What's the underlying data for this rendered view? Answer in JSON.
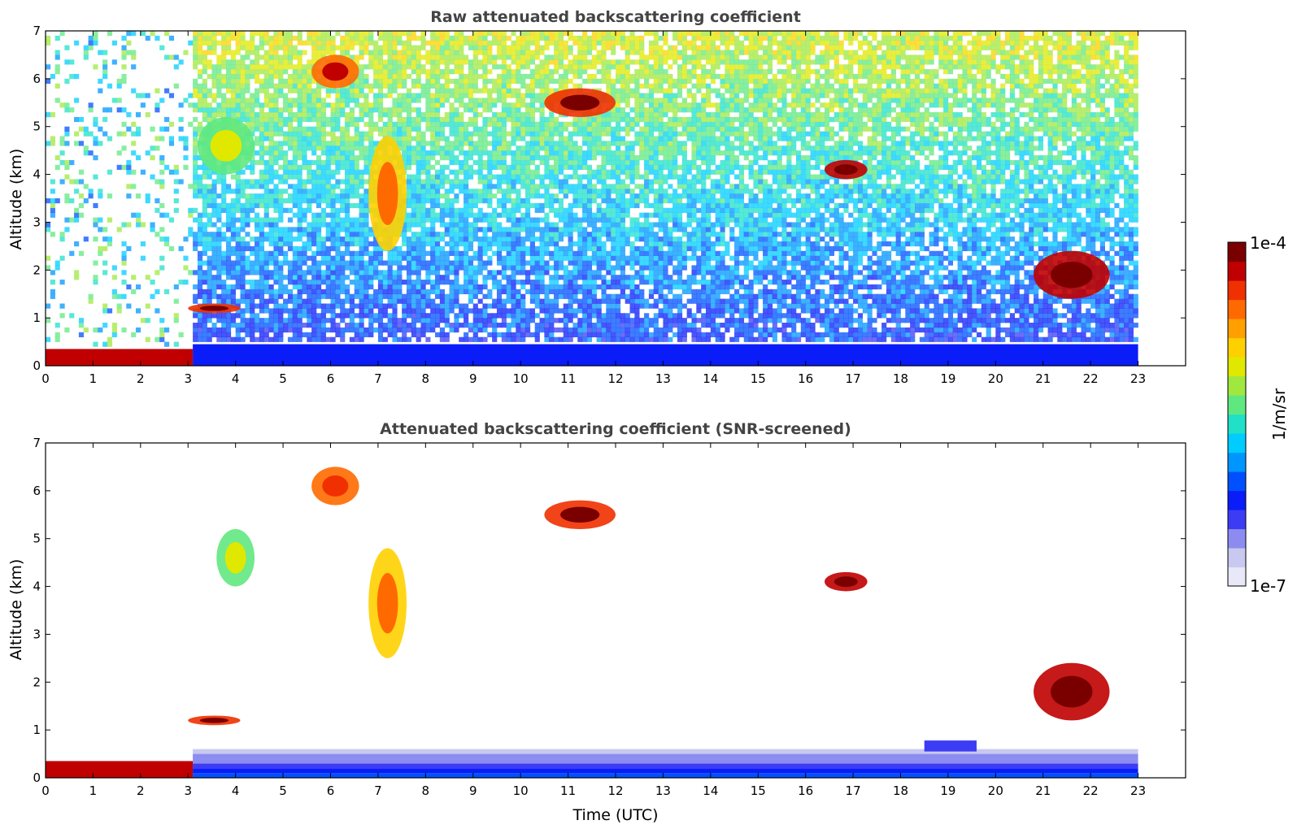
{
  "figure": {
    "colorbar": {
      "max_label": "1e-4",
      "min_label": "1e-7",
      "unit_label": "1/m/sr",
      "scale": "log",
      "colors": [
        "#e8e8f8",
        "#c8c8f0",
        "#8c8cf0",
        "#3c3cf4",
        "#0a1cf8",
        "#0050ff",
        "#0096ff",
        "#00ccff",
        "#20e0c8",
        "#60e880",
        "#a0e840",
        "#e0e800",
        "#ffd000",
        "#ffa000",
        "#ff6a00",
        "#f03000",
        "#c00000",
        "#7a0000"
      ]
    }
  },
  "chart_data": [
    {
      "type": "heatmap",
      "title": "Raw attenuated backscattering coefficient",
      "xlabel": "",
      "ylabel": "Altitude (km)",
      "xlim": [
        0,
        24
      ],
      "ylim": [
        0,
        7
      ],
      "x_ticks": [
        "0",
        "1",
        "2",
        "3",
        "4",
        "5",
        "6",
        "7",
        "8",
        "9",
        "10",
        "11",
        "12",
        "13",
        "14",
        "15",
        "16",
        "17",
        "18",
        "19",
        "20",
        "21",
        "22",
        "23"
      ],
      "y_ticks": [
        "0",
        "1",
        "2",
        "3",
        "4",
        "5",
        "6",
        "7"
      ],
      "data_extent_hours": [
        0,
        23
      ],
      "features": [
        {
          "name": "boundary-layer",
          "t": [
            3.1,
            23.0
          ],
          "alt": [
            0.0,
            0.45
          ],
          "level": 0.25
        },
        {
          "name": "morning-surface-layer",
          "t": [
            0.0,
            3.1
          ],
          "alt": [
            0.0,
            0.35
          ],
          "level": 0.92
        },
        {
          "name": "cloud-1",
          "t": [
            3.0,
            4.1
          ],
          "alt": [
            1.1,
            1.3
          ],
          "level": 0.88
        },
        {
          "name": "cloud-2",
          "t": [
            5.6,
            6.6
          ],
          "alt": [
            5.8,
            6.5
          ],
          "level": 0.85
        },
        {
          "name": "cloud-3",
          "t": [
            6.8,
            7.6
          ],
          "alt": [
            2.4,
            4.8
          ],
          "level": 0.72
        },
        {
          "name": "cloud-4",
          "t": [
            10.5,
            12.0
          ],
          "alt": [
            5.2,
            5.8
          ],
          "level": 0.9
        },
        {
          "name": "cloud-5",
          "t": [
            16.4,
            17.3
          ],
          "alt": [
            3.9,
            4.3
          ],
          "level": 0.95
        },
        {
          "name": "cloud-6",
          "t": [
            20.8,
            22.4
          ],
          "alt": [
            1.4,
            2.4
          ],
          "level": 0.92
        },
        {
          "name": "aerosol-patch",
          "t": [
            3.2,
            4.4
          ],
          "alt": [
            4.0,
            5.2
          ],
          "level": 0.55
        }
      ]
    },
    {
      "type": "heatmap",
      "title": "Attenuated backscattering coefficient (SNR-screened)",
      "xlabel": "Time (UTC)",
      "ylabel": "Altitude (km)",
      "xlim": [
        0,
        24
      ],
      "ylim": [
        0,
        7
      ],
      "x_ticks": [
        "0",
        "1",
        "2",
        "3",
        "4",
        "5",
        "6",
        "7",
        "8",
        "9",
        "10",
        "11",
        "12",
        "13",
        "14",
        "15",
        "16",
        "17",
        "18",
        "19",
        "20",
        "21",
        "22",
        "23"
      ],
      "y_ticks": [
        "0",
        "1",
        "2",
        "3",
        "4",
        "5",
        "6",
        "7"
      ],
      "data_extent_hours": [
        0,
        23
      ],
      "features": [
        {
          "name": "boundary-layer",
          "t": [
            3.1,
            23.0
          ],
          "alt": [
            0.0,
            0.6
          ],
          "level": 0.25
        },
        {
          "name": "morning-surface-layer",
          "t": [
            0.0,
            3.1
          ],
          "alt": [
            0.0,
            0.35
          ],
          "level": 0.92
        },
        {
          "name": "cloud-1",
          "t": [
            3.0,
            4.1
          ],
          "alt": [
            1.1,
            1.3
          ],
          "level": 0.88
        },
        {
          "name": "cloud-2",
          "t": [
            5.6,
            6.6
          ],
          "alt": [
            5.7,
            6.5
          ],
          "level": 0.8
        },
        {
          "name": "cloud-3",
          "t": [
            6.8,
            7.6
          ],
          "alt": [
            2.5,
            4.8
          ],
          "level": 0.72
        },
        {
          "name": "cloud-4",
          "t": [
            10.5,
            12.0
          ],
          "alt": [
            5.2,
            5.8
          ],
          "level": 0.9
        },
        {
          "name": "cloud-5",
          "t": [
            16.4,
            17.3
          ],
          "alt": [
            3.9,
            4.3
          ],
          "level": 0.95
        },
        {
          "name": "cloud-6",
          "t": [
            20.8,
            22.4
          ],
          "alt": [
            1.2,
            2.4
          ],
          "level": 0.92
        },
        {
          "name": "aerosol-patch",
          "t": [
            3.6,
            4.4
          ],
          "alt": [
            4.0,
            5.2
          ],
          "level": 0.55
        }
      ]
    }
  ]
}
